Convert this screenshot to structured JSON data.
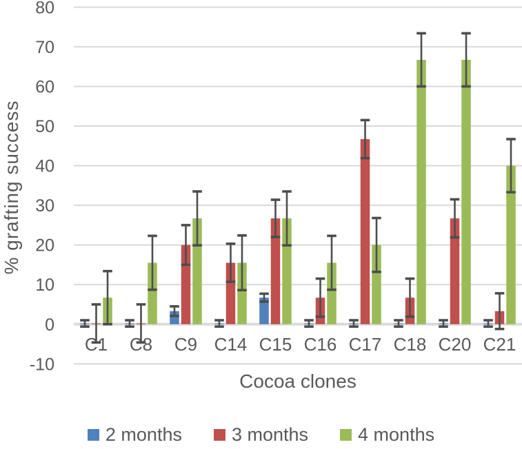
{
  "chart_data": {
    "type": "bar",
    "title": "",
    "xlabel": "Cocoa clones",
    "ylabel": "% grafting success",
    "ylim": [
      -10,
      80
    ],
    "yticks": [
      80,
      70,
      60,
      50,
      40,
      30,
      20,
      10,
      0,
      -10
    ],
    "grid": true,
    "legend_position": "bottom",
    "categories": [
      "C1",
      "C8",
      "C9",
      "C14",
      "C15",
      "C16",
      "C17",
      "C18",
      "C20",
      "C21"
    ],
    "series": [
      {
        "name": "2 months",
        "color": "#4F81BD",
        "values": [
          0.2,
          0.2,
          3.3,
          0.2,
          6.7,
          0.2,
          0.2,
          0.2,
          0.2,
          0.2
        ],
        "errors": [
          0.8,
          0.8,
          1.2,
          0.8,
          1.0,
          0.8,
          0.8,
          0.8,
          0.8,
          0.8
        ]
      },
      {
        "name": "3 months",
        "color": "#C0504D",
        "values": [
          0.2,
          0.2,
          20.0,
          15.5,
          26.7,
          6.7,
          46.7,
          6.7,
          26.7,
          3.3
        ],
        "errors": [
          4.8,
          4.8,
          5.0,
          4.8,
          4.7,
          4.8,
          4.8,
          4.8,
          4.8,
          4.5
        ]
      },
      {
        "name": "4 months",
        "color": "#9BBB59",
        "values": [
          6.7,
          15.5,
          26.7,
          15.5,
          26.7,
          15.5,
          20.0,
          66.7,
          66.7,
          40.0
        ],
        "errors": [
          6.7,
          6.8,
          6.8,
          6.9,
          6.8,
          6.8,
          6.8,
          6.7,
          6.7,
          6.7
        ]
      }
    ],
    "style": {
      "grid_color": "#d9d9d9",
      "zero_axis_color": "#dbdbdb",
      "error_bar_color": "#4d4d4d",
      "text_color": "#595959"
    }
  }
}
